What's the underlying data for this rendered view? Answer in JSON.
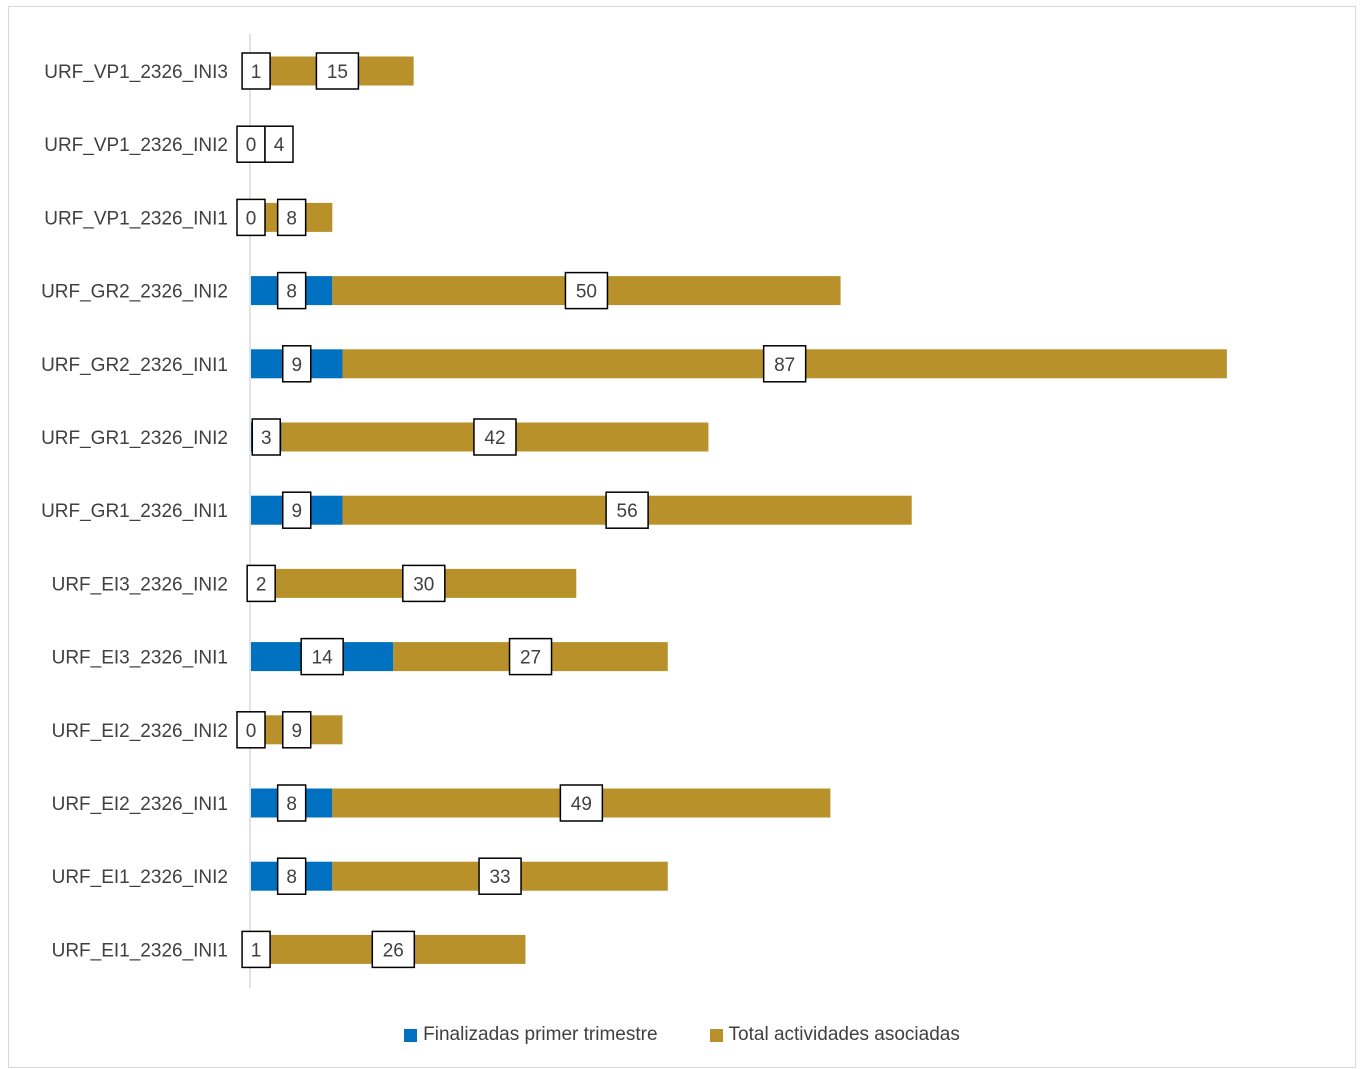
{
  "chart_data": {
    "type": "bar",
    "orientation": "horizontal",
    "stacked": true,
    "title": "",
    "xlabel": "",
    "ylabel": "",
    "categories": [
      "URF_VP1_2326_INI3",
      "URF_VP1_2326_INI2",
      "URF_VP1_2326_INI1",
      "URF_GR2_2326_INI2",
      "URF_GR2_2326_INI1",
      "URF_GR1_2326_INI2",
      "URF_GR1_2326_INI1",
      "URF_EI3_2326_INI2",
      "URF_EI3_2326_INI1",
      "URF_EI2_2326_INI2",
      "URF_EI2_2326_INI1",
      "URF_EI1_2326_INI2",
      "URF_EI1_2326_INI1"
    ],
    "series": [
      {
        "name": "Finalizadas primer trimestre",
        "color": "#0070C0",
        "values": [
          1,
          0,
          0,
          8,
          9,
          3,
          9,
          2,
          14,
          0,
          8,
          8,
          1
        ]
      },
      {
        "name": "Total actividades asociadas",
        "color": "#B8912A",
        "values": [
          15,
          4,
          8,
          50,
          87,
          42,
          56,
          30,
          27,
          9,
          49,
          33,
          26
        ]
      }
    ],
    "xlim": [
      0,
      97
    ],
    "grid": false,
    "legend_position": "bottom"
  }
}
